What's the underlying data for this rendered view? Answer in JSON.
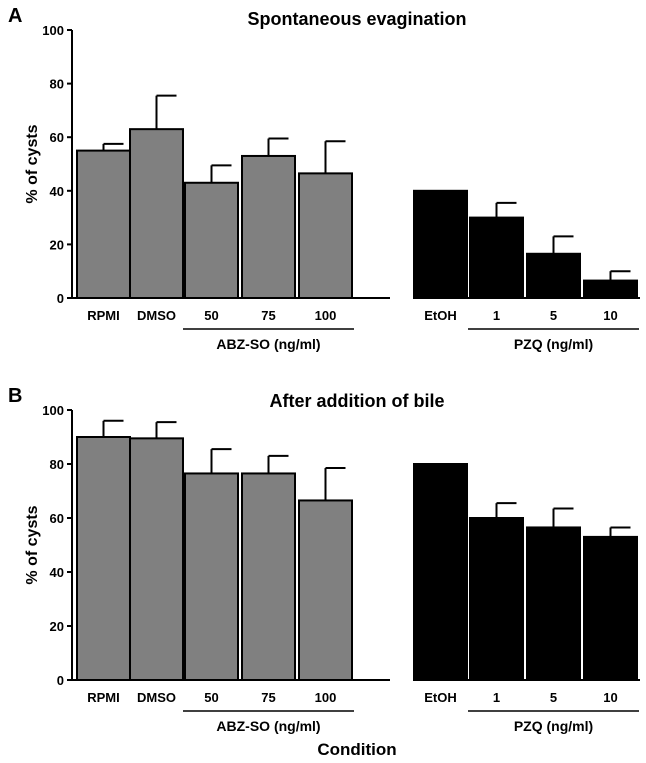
{
  "figure": {
    "xlabel": "Condition"
  },
  "chart_data": [
    {
      "panel": "A",
      "type": "bar",
      "title": "Spontaneous evagination",
      "ylabel": "% of cysts",
      "ylim": [
        0,
        100
      ],
      "yticks": [
        0,
        20,
        40,
        60,
        80,
        100
      ],
      "categories": [
        "RPMI",
        "DMSO",
        "50",
        "75",
        "100",
        "EtOH",
        "1",
        "5",
        "10"
      ],
      "values": [
        55,
        63,
        43,
        53,
        46.5,
        40,
        30,
        16.5,
        6.5
      ],
      "errors": [
        2.5,
        12.5,
        6.5,
        6.5,
        12,
        0,
        5.5,
        6.5,
        3.5
      ],
      "colors": [
        "#808080",
        "#808080",
        "#808080",
        "#808080",
        "#808080",
        "#000000",
        "#000000",
        "#000000",
        "#000000"
      ],
      "groups": [
        {
          "label": "ABZ-SO (ng/ml)",
          "from": 2,
          "to": 4
        },
        {
          "label": "PZQ (ng/ml)",
          "from": 6,
          "to": 8
        }
      ],
      "grid": false
    },
    {
      "panel": "B",
      "type": "bar",
      "title": "After addition of bile",
      "ylabel": "% of cysts",
      "ylim": [
        0,
        100
      ],
      "yticks": [
        0,
        20,
        40,
        60,
        80,
        100
      ],
      "categories": [
        "RPMI",
        "DMSO",
        "50",
        "75",
        "100",
        "EtOH",
        "1",
        "5",
        "10"
      ],
      "values": [
        90,
        89.5,
        76.5,
        76.5,
        66.5,
        80,
        60,
        56.5,
        53
      ],
      "errors": [
        6,
        6,
        9,
        6.5,
        12,
        0,
        5.5,
        7,
        3.5
      ],
      "colors": [
        "#808080",
        "#808080",
        "#808080",
        "#808080",
        "#808080",
        "#000000",
        "#000000",
        "#000000",
        "#000000"
      ],
      "groups": [
        {
          "label": "ABZ-SO (ng/ml)",
          "from": 2,
          "to": 4
        },
        {
          "label": "PZQ (ng/ml)",
          "from": 6,
          "to": 8
        }
      ],
      "grid": false
    }
  ]
}
